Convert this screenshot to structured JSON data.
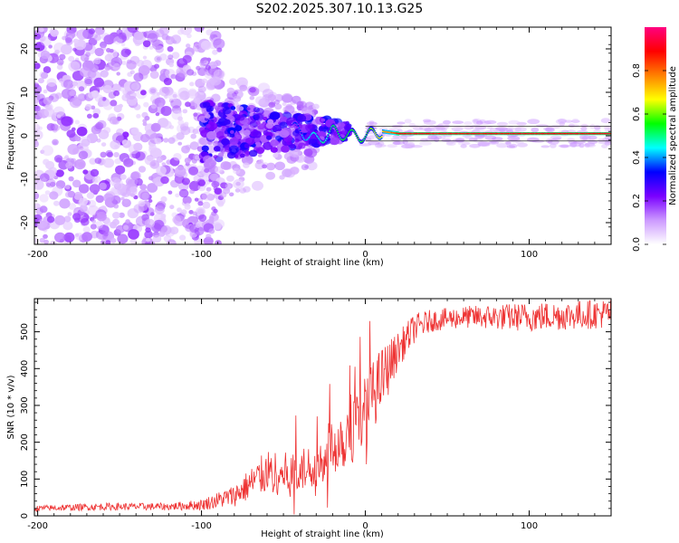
{
  "title": "S202.2025.307.10.13.G25",
  "chart_data": [
    {
      "type": "heatmap",
      "name": "spectrogram",
      "xlabel": "Height of straight line (km)",
      "ylabel": "Frequency (Hz)",
      "xlim": [
        -202,
        150
      ],
      "ylim": [
        -25,
        25
      ],
      "xticks": [
        -200,
        -100,
        0,
        100
      ],
      "yticks": [
        -20,
        -10,
        0,
        10,
        20
      ],
      "colorbar": {
        "label": "Normalized spectral amplitude",
        "range": [
          0,
          1
        ],
        "ticks": [
          "0.0",
          "0.2",
          "0.4",
          "0.6",
          "0.8"
        ],
        "colors": [
          "#ffffff",
          "#cc99ff",
          "#7a00ff",
          "#0000ff",
          "#00ffff",
          "#00ff00",
          "#ffff00",
          "#ff8000",
          "#ff0000",
          "#ff0080"
        ]
      },
      "ridge": {
        "description": "coherent carrier line near 0-1 Hz from about -45 km to 150 km",
        "x": [
          -45,
          -35,
          -30,
          -20,
          -10,
          0,
          10,
          20,
          50,
          100,
          150
        ],
        "freq": [
          2,
          0,
          -1,
          1,
          0,
          0,
          1,
          0.5,
          0.5,
          0.5,
          0.5
        ],
        "amplitude": [
          0.3,
          0.45,
          0.45,
          0.5,
          0.55,
          0.55,
          0.7,
          0.9,
          0.9,
          0.9,
          0.9
        ]
      },
      "noise_region": {
        "x_range": [
          -202,
          -100
        ],
        "freq_range": [
          -25,
          25
        ],
        "typical_amplitude": [
          0.05,
          0.2
        ]
      }
    },
    {
      "type": "line",
      "name": "snr",
      "xlabel": "Height of straight line (km)",
      "ylabel": "SNR (10 * v/v)",
      "xlim": [
        -202,
        150
      ],
      "ylim": [
        0,
        590
      ],
      "xticks": [
        -200,
        -100,
        0,
        100
      ],
      "yticks": [
        0,
        100,
        200,
        300,
        400,
        500
      ],
      "color": "#ee3333",
      "envelope": {
        "x": [
          -202,
          -160,
          -120,
          -100,
          -80,
          -60,
          -45,
          -30,
          -20,
          -10,
          0,
          10,
          20,
          30,
          40,
          60,
          100,
          150
        ],
        "mean": [
          20,
          25,
          25,
          30,
          55,
          120,
          110,
          140,
          190,
          230,
          290,
          370,
          450,
          510,
          530,
          540,
          540,
          550
        ],
        "spread": [
          8,
          10,
          10,
          15,
          30,
          60,
          60,
          60,
          80,
          100,
          100,
          90,
          50,
          40,
          30,
          30,
          40,
          40
        ]
      }
    }
  ]
}
